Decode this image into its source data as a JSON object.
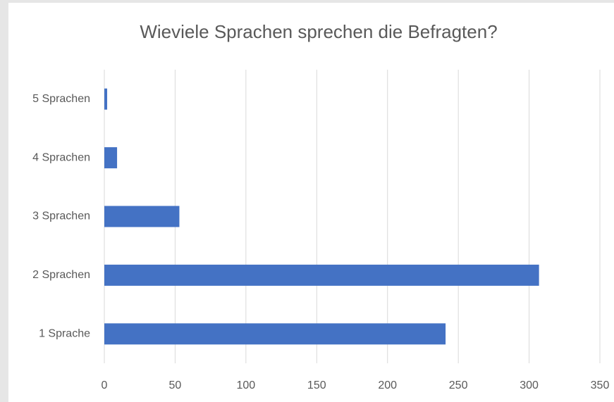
{
  "chart_data": {
    "type": "bar",
    "orientation": "horizontal",
    "title": "Wieviele Sprachen sprechen die Befragten?",
    "categories": [
      "1 Sprache",
      "2 Sprachen",
      "3 Sprachen",
      "4 Sprachen",
      "5 Sprachen"
    ],
    "values": [
      241,
      307,
      53,
      9,
      2
    ],
    "color": "#4472c4",
    "xlim": [
      0,
      350
    ],
    "xticks": [
      0,
      50,
      100,
      150,
      200,
      250,
      300,
      350
    ],
    "grid": true
  }
}
